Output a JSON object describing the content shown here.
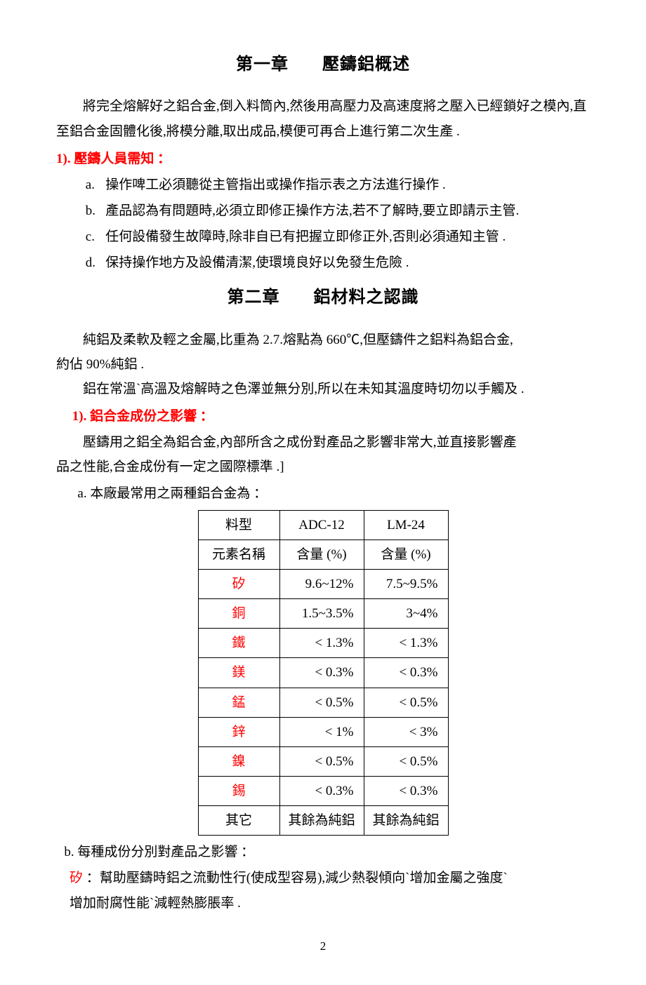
{
  "chapter1": {
    "label": "第一章",
    "title": "壓鑄鋁概述",
    "intro": "將完全熔解好之鋁合金,倒入料筒內,然後用高壓力及高速度將之壓入已經鎖好之模內,直至鋁合金固體化後,將模分離,取出成品,模便可再合上進行第二次生產  .",
    "section1_head": "1). 壓鑄人員需知 ：",
    "items": {
      "a": "操作啤工必須聽從主管指出或操作指示表之方法進行操作  .",
      "b": "產品認為有問題時,必須立即修正操作方法,若不了解時,要立即請示主管.",
      "c": "任何設備發生故障時,除非自已有把握立即修正外,否則必須通知主管  .",
      "d": "保持操作地方及設備清潔,使環境良好以免發生危險  ."
    }
  },
  "chapter2": {
    "label": "第二章",
    "title": "鋁材料之認識",
    "p1a": "純鋁及柔軟及輕之金屬,比重為 2.7.熔點為 660℃,但壓鑄件之鋁料為鋁合金,",
    "p1b": "約佔 90%純鋁  .",
    "p2": "鋁在常溫`高溫及熔解時之色澤並無分別,所以在未知其溫度時切勿以手觸及  .",
    "section1_head": "1). 鋁合金成份之影響 ：",
    "p3a": "壓鑄用之鋁全為鋁合金,內部所含之成份對產品之影響非常大,並直接影響產",
    "p3b": "品之性能,合金成份有一定之國際標準  .]",
    "sub_a": "a.  本廠最常用之兩種鋁合金為 ：",
    "sub_b": "b.  每種成份分別對產品之影響 ：",
    "effect_si_label": "矽",
    "effect_si_p1": " ：幫助壓鑄時鋁之流動性行(使成型容易),減少熱裂傾向`增加金屬之強度`",
    "effect_si_p2": "增加耐腐性能`減輕熱膨脹率  ."
  },
  "table": {
    "hdr_type": "料型",
    "hdr_c1": "ADC-12",
    "hdr_c2": "LM-24",
    "hdr_elem": "元素名稱",
    "hdr_pct1": "含量  (%)",
    "hdr_pct2": "含量  (%)",
    "rows": [
      {
        "elem": "矽",
        "red": true,
        "v1": "9.6~12%",
        "v2": "7.5~9.5%"
      },
      {
        "elem": "銅",
        "red": true,
        "v1": "1.5~3.5%",
        "v2": "3~4%"
      },
      {
        "elem": "鐵",
        "red": true,
        "v1": "<  1.3%",
        "v2": "<  1.3%"
      },
      {
        "elem": "鎂",
        "red": true,
        "v1": "<  0.3%",
        "v2": "<  0.3%"
      },
      {
        "elem": "錳",
        "red": true,
        "v1": "<  0.5%",
        "v2": "<  0.5%"
      },
      {
        "elem": "鋅",
        "red": true,
        "v1": "<  1%",
        "v2": "<  3%"
      },
      {
        "elem": "鎳",
        "red": true,
        "v1": "<  0.5%",
        "v2": "<  0.5%"
      },
      {
        "elem": "錫",
        "red": true,
        "v1": "<  0.3%",
        "v2": "<  0.3%"
      },
      {
        "elem": "其它",
        "red": false,
        "v1": "其餘為純鋁",
        "v2": "其餘為純鋁"
      }
    ]
  },
  "page_number": "2",
  "colors": {
    "accent_red": "#ff0000",
    "text": "#000000",
    "bg": "#ffffff"
  }
}
